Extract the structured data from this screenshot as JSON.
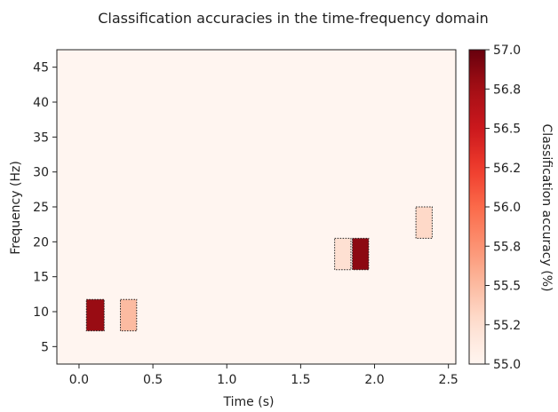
{
  "chart_data": {
    "type": "heatmap",
    "title": "Classification accuracies in the time-frequency domain",
    "xlabel": "Time (s)",
    "ylabel": "Frequency (Hz)",
    "xlim": [
      -0.15,
      2.55
    ],
    "ylim": [
      2.5,
      47.5
    ],
    "x_ticks": [
      0.0,
      0.5,
      1.0,
      1.5,
      2.0,
      2.5
    ],
    "x_tick_labels": [
      "0.0",
      "0.5",
      "1.0",
      "1.5",
      "2.0",
      "2.5"
    ],
    "y_ticks": [
      5,
      10,
      15,
      20,
      25,
      30,
      35,
      40,
      45
    ],
    "y_tick_labels": [
      "5",
      "10",
      "15",
      "20",
      "25",
      "30",
      "35",
      "40",
      "45"
    ],
    "background_value": 55.0,
    "cells": [
      {
        "t_start": 0.05,
        "t_end": 0.17,
        "f_low": 7.25,
        "f_high": 11.75,
        "value": 56.8
      },
      {
        "t_start": 0.28,
        "t_end": 0.39,
        "f_low": 7.25,
        "f_high": 11.75,
        "value": 55.5
      },
      {
        "t_start": 1.73,
        "t_end": 1.84,
        "f_low": 16.0,
        "f_high": 20.5,
        "value": 55.25
      },
      {
        "t_start": 1.85,
        "t_end": 1.96,
        "f_low": 16.0,
        "f_high": 20.5,
        "value": 56.85
      },
      {
        "t_start": 2.28,
        "t_end": 2.39,
        "f_low": 20.5,
        "f_high": 25.0,
        "value": 55.3
      }
    ],
    "colorbar": {
      "label": "Classification accuracy (%)",
      "min": 55.0,
      "max": 57.0,
      "ticks": [
        55.0,
        55.25,
        55.5,
        55.75,
        56.0,
        56.25,
        56.5,
        56.75,
        57.0
      ],
      "tick_labels": [
        "55.0",
        "55.2",
        "55.5",
        "55.8",
        "56.0",
        "56.2",
        "56.5",
        "56.8",
        "57.0"
      ],
      "colormap": "Reds",
      "placement": "right"
    },
    "grid": false
  }
}
